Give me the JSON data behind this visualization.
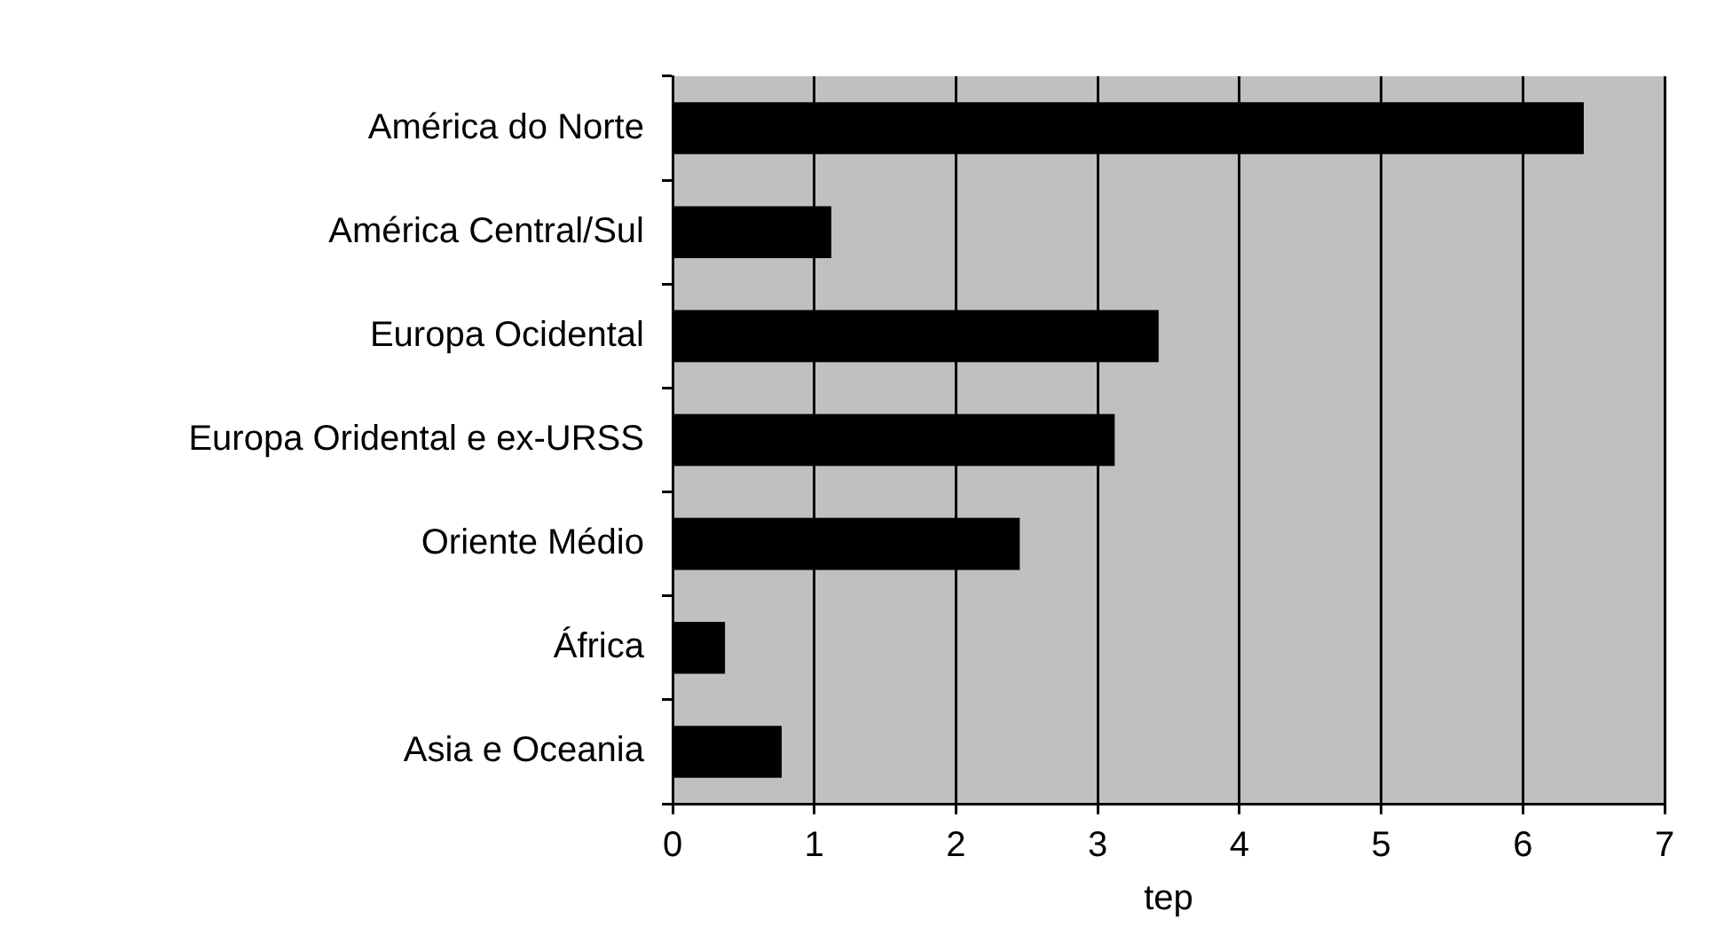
{
  "chart_data": {
    "type": "bar",
    "orientation": "horizontal",
    "xlabel": "tep",
    "categories": [
      "América do Norte",
      "América Central/Sul",
      "Europa Ocidental",
      "Europa Oridental e ex-URSS",
      "Oriente Médio",
      "África",
      "Asia e Oceania"
    ],
    "values": [
      6.43,
      1.12,
      3.43,
      3.12,
      2.45,
      0.37,
      0.77
    ],
    "color": "#000000",
    "xlim": [
      0,
      7
    ],
    "xticks": [
      0,
      1,
      2,
      3,
      4,
      5,
      6,
      7
    ],
    "grid": "x",
    "legend": false
  }
}
